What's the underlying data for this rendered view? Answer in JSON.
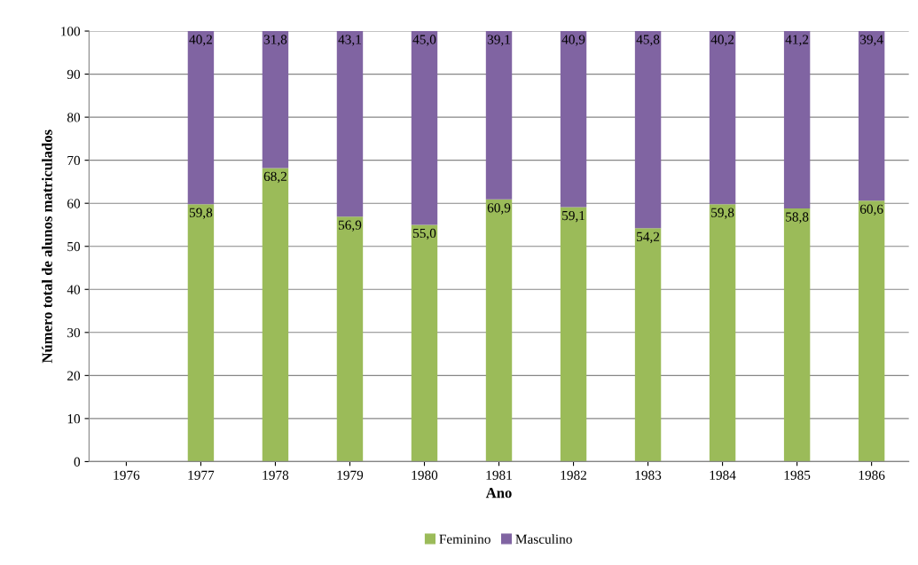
{
  "chart_data": {
    "type": "bar",
    "stacked": true,
    "xlabel": "Ano",
    "ylabel": "Número total de alunos matriculados",
    "categories": [
      "1976",
      "1977",
      "1978",
      "1979",
      "1980",
      "1981",
      "1982",
      "1983",
      "1984",
      "1985",
      "1986"
    ],
    "series": [
      {
        "name": "Feminino",
        "color": "#9bbb59",
        "values": [
          null,
          59.8,
          68.2,
          56.9,
          55.0,
          60.9,
          59.1,
          54.2,
          59.8,
          58.8,
          60.6
        ],
        "value_labels": [
          null,
          "59,8",
          "68,2",
          "56,9",
          "55,0",
          "60,9",
          "59,1",
          "54,2",
          "59,8",
          "58,8",
          "60,6"
        ]
      },
      {
        "name": "Masculino",
        "color": "#8064a2",
        "values": [
          null,
          40.2,
          31.8,
          43.1,
          45.0,
          39.1,
          40.9,
          45.8,
          40.2,
          41.2,
          39.4
        ],
        "value_labels": [
          null,
          "40,2",
          "31,8",
          "43,1",
          "45,0",
          "39,1",
          "40,9",
          "45,8",
          "40,2",
          "41,2",
          "39,4"
        ]
      }
    ],
    "ylim": [
      0,
      100
    ],
    "yticks": [
      0,
      10,
      20,
      30,
      40,
      50,
      60,
      70,
      80,
      90,
      100
    ],
    "grid": "y",
    "legend": "bottom"
  }
}
